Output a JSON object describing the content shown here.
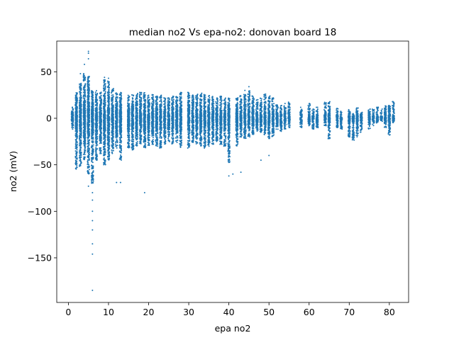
{
  "chart_data": {
    "type": "scatter",
    "title": "median no2 Vs epa-no2: donovan board 18",
    "xlabel": "epa no2",
    "ylabel": "no2 (mV)",
    "xlim": [
      -2.9,
      84.8
    ],
    "ylim": [
      -198.0,
      83.0
    ],
    "xticks": [
      0,
      10,
      20,
      30,
      40,
      50,
      60,
      70,
      80
    ],
    "yticks": [
      -150,
      -100,
      -50,
      0,
      50
    ],
    "xtick_labels": [
      "0",
      "10",
      "20",
      "30",
      "40",
      "50",
      "60",
      "70",
      "80"
    ],
    "ytick_labels": [
      "−150",
      "−100",
      "−50",
      "0",
      "50"
    ],
    "marker_color": "#1f77b4",
    "grid": false,
    "columns": [
      {
        "x": 1,
        "lo": -12,
        "hi": 12
      },
      {
        "x": 2,
        "lo": -55,
        "hi": 28
      },
      {
        "x": 3,
        "lo": -52,
        "hi": 38
      },
      {
        "x": 4,
        "lo": -45,
        "hi": 48
      },
      {
        "x": 5,
        "lo": -60,
        "hi": 45
      },
      {
        "x": 6,
        "lo": -70,
        "hi": 30
      },
      {
        "x": 7,
        "lo": -45,
        "hi": 30
      },
      {
        "x": 8,
        "lo": -38,
        "hi": 28
      },
      {
        "x": 9,
        "lo": -50,
        "hi": 42
      },
      {
        "x": 10,
        "lo": -45,
        "hi": 40
      },
      {
        "x": 11,
        "lo": -38,
        "hi": 32
      },
      {
        "x": 12,
        "lo": -32,
        "hi": 28
      },
      {
        "x": 13,
        "lo": -45,
        "hi": 28
      },
      {
        "x": 15,
        "lo": -32,
        "hi": 25
      },
      {
        "x": 16,
        "lo": -35,
        "hi": 26
      },
      {
        "x": 17,
        "lo": -30,
        "hi": 27
      },
      {
        "x": 18,
        "lo": -28,
        "hi": 28
      },
      {
        "x": 19,
        "lo": -32,
        "hi": 28
      },
      {
        "x": 20,
        "lo": -30,
        "hi": 25
      },
      {
        "x": 21,
        "lo": -28,
        "hi": 26
      },
      {
        "x": 22,
        "lo": -30,
        "hi": 24
      },
      {
        "x": 23,
        "lo": -32,
        "hi": 25
      },
      {
        "x": 24,
        "lo": -28,
        "hi": 22
      },
      {
        "x": 25,
        "lo": -26,
        "hi": 22
      },
      {
        "x": 26,
        "lo": -28,
        "hi": 25
      },
      {
        "x": 27,
        "lo": -26,
        "hi": 24
      },
      {
        "x": 28,
        "lo": -32,
        "hi": 28
      },
      {
        "x": 30,
        "lo": -32,
        "hi": 28
      },
      {
        "x": 31,
        "lo": -26,
        "hi": 25
      },
      {
        "x": 32,
        "lo": -28,
        "hi": 26
      },
      {
        "x": 33,
        "lo": -30,
        "hi": 27
      },
      {
        "x": 34,
        "lo": -32,
        "hi": 26
      },
      {
        "x": 35,
        "lo": -30,
        "hi": 25
      },
      {
        "x": 36,
        "lo": -28,
        "hi": 24
      },
      {
        "x": 37,
        "lo": -25,
        "hi": 22
      },
      {
        "x": 38,
        "lo": -28,
        "hi": 24
      },
      {
        "x": 39,
        "lo": -30,
        "hi": 22
      },
      {
        "x": 40,
        "lo": -48,
        "hi": 22
      },
      {
        "x": 42,
        "lo": -30,
        "hi": 22
      },
      {
        "x": 43,
        "lo": -20,
        "hi": 25
      },
      {
        "x": 44,
        "lo": -22,
        "hi": 26
      },
      {
        "x": 45,
        "lo": -20,
        "hi": 30
      },
      {
        "x": 46,
        "lo": -18,
        "hi": 24
      },
      {
        "x": 47,
        "lo": -15,
        "hi": 20
      },
      {
        "x": 48,
        "lo": -16,
        "hi": 22
      },
      {
        "x": 49,
        "lo": -18,
        "hi": 26
      },
      {
        "x": 50,
        "lo": -22,
        "hi": 24
      },
      {
        "x": 51,
        "lo": -20,
        "hi": 22
      },
      {
        "x": 52,
        "lo": -12,
        "hi": 16
      },
      {
        "x": 53,
        "lo": -14,
        "hi": 14
      },
      {
        "x": 54,
        "lo": -12,
        "hi": 16
      },
      {
        "x": 55,
        "lo": -10,
        "hi": 18
      },
      {
        "x": 58,
        "lo": -10,
        "hi": 12
      },
      {
        "x": 60,
        "lo": -8,
        "hi": 16
      },
      {
        "x": 61,
        "lo": -12,
        "hi": 10
      },
      {
        "x": 62,
        "lo": -10,
        "hi": 12
      },
      {
        "x": 64,
        "lo": -8,
        "hi": 18
      },
      {
        "x": 65,
        "lo": -22,
        "hi": 18
      },
      {
        "x": 67,
        "lo": -10,
        "hi": 12
      },
      {
        "x": 68,
        "lo": -12,
        "hi": 8
      },
      {
        "x": 70,
        "lo": -20,
        "hi": 10
      },
      {
        "x": 71,
        "lo": -24,
        "hi": 6
      },
      {
        "x": 72,
        "lo": -20,
        "hi": 12
      },
      {
        "x": 73,
        "lo": -15,
        "hi": 8
      },
      {
        "x": 75,
        "lo": -12,
        "hi": 12
      },
      {
        "x": 76,
        "lo": -8,
        "hi": 10
      },
      {
        "x": 77,
        "lo": -5,
        "hi": 12
      },
      {
        "x": 78,
        "lo": -4,
        "hi": 10
      },
      {
        "x": 79,
        "lo": -10,
        "hi": 14
      },
      {
        "x": 80,
        "lo": -18,
        "hi": 14
      },
      {
        "x": 81,
        "lo": -5,
        "hi": 18
      }
    ],
    "outliers": [
      {
        "x": 5,
        "y": 72
      },
      {
        "x": 5,
        "y": 70
      },
      {
        "x": 5,
        "y": 64
      },
      {
        "x": 4,
        "y": 58
      },
      {
        "x": 3,
        "y": 48
      },
      {
        "x": 9,
        "y": 44
      },
      {
        "x": 10,
        "y": 43
      },
      {
        "x": 45,
        "y": 34
      },
      {
        "x": 44,
        "y": 30
      },
      {
        "x": 6,
        "y": -80
      },
      {
        "x": 6,
        "y": -88
      },
      {
        "x": 6,
        "y": -100
      },
      {
        "x": 6,
        "y": -110
      },
      {
        "x": 6,
        "y": -120
      },
      {
        "x": 6,
        "y": -135
      },
      {
        "x": 6,
        "y": -146
      },
      {
        "x": 6,
        "y": -185
      },
      {
        "x": 5,
        "y": -73
      },
      {
        "x": 12,
        "y": -69
      },
      {
        "x": 13,
        "y": -69
      },
      {
        "x": 19,
        "y": -80
      },
      {
        "x": 41,
        "y": -60
      },
      {
        "x": 40,
        "y": -62
      },
      {
        "x": 43,
        "y": -58
      },
      {
        "x": 48,
        "y": -45
      },
      {
        "x": 50,
        "y": -40
      }
    ]
  }
}
